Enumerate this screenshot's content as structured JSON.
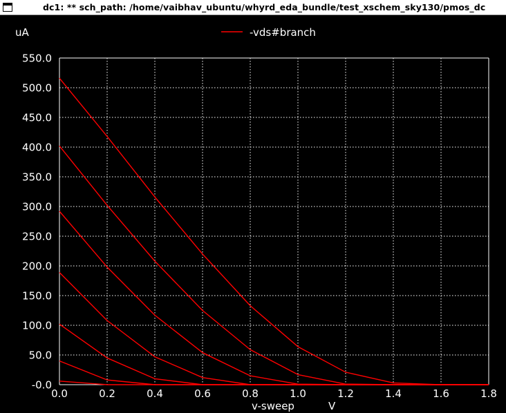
{
  "window": {
    "title": "dc1: ** sch_path: /home/vaibhav_ubuntu/whyrd_eda_bundle/test_xschem_sky130/pmos_dc",
    "menu_icon": "window-menu-icon"
  },
  "colors": {
    "background": "#000000",
    "grid": "#ffffff",
    "axis_text": "#ffffff",
    "trace": "#ff0000",
    "titlebar_bg": "#ffffff"
  },
  "chart_data": {
    "type": "line",
    "title": "",
    "xlabel": "v-sweep",
    "xunit": "V",
    "ylabel": "uA",
    "xlim": [
      0.0,
      1.8
    ],
    "ylim": [
      0.0,
      550.0
    ],
    "x_ticks": [
      "0.0",
      "0.2",
      "0.4",
      "0.6",
      "0.8",
      "1.0",
      "1.2",
      "1.4",
      "1.6",
      "1.8"
    ],
    "y_ticks": [
      "-0.0",
      "50.0",
      "100.0",
      "150.0",
      "200.0",
      "250.0",
      "300.0",
      "350.0",
      "400.0",
      "450.0",
      "500.0",
      "550.0"
    ],
    "grid": true,
    "grid_style": "dotted",
    "legend_position": "top-center",
    "legend": [
      "-vds#branch"
    ],
    "series": [
      {
        "name": "-vds#branch",
        "x": [
          0.0,
          0.2,
          0.4,
          0.6,
          0.8,
          1.0,
          1.2,
          1.4,
          1.6,
          1.8
        ],
        "values": [
          516,
          418,
          316,
          220,
          133,
          64,
          21,
          3,
          0,
          0
        ]
      },
      {
        "name": "-vds#branch",
        "x": [
          0.0,
          0.2,
          0.4,
          0.6,
          0.8,
          1.0,
          1.2,
          1.4,
          1.6,
          1.8
        ],
        "values": [
          402,
          302,
          208,
          125,
          59,
          17,
          1,
          0,
          0,
          0
        ]
      },
      {
        "name": "-vds#branch",
        "x": [
          0.0,
          0.2,
          0.4,
          0.6,
          0.8,
          1.0,
          1.2,
          1.4,
          1.6,
          1.8
        ],
        "values": [
          292,
          198,
          117,
          54,
          15,
          1,
          0,
          0,
          0,
          0
        ]
      },
      {
        "name": "-vds#branch",
        "x": [
          0.0,
          0.2,
          0.4,
          0.6,
          0.8,
          1.0,
          1.2,
          1.4,
          1.6,
          1.8
        ],
        "values": [
          189,
          108,
          47,
          12,
          0,
          0,
          0,
          0,
          0,
          0
        ]
      },
      {
        "name": "-vds#branch",
        "x": [
          0.0,
          0.2,
          0.4,
          0.6,
          0.8,
          1.0,
          1.2,
          1.4,
          1.6,
          1.8
        ],
        "values": [
          102,
          45,
          10,
          0,
          0,
          0,
          0,
          0,
          0,
          0
        ]
      },
      {
        "name": "-vds#branch",
        "x": [
          0.0,
          0.2,
          0.4,
          0.6,
          0.8,
          1.0,
          1.2,
          1.4,
          1.6,
          1.8
        ],
        "values": [
          40,
          8,
          0,
          0,
          0,
          0,
          0,
          0,
          0,
          0
        ]
      },
      {
        "name": "-vds#branch",
        "x": [
          0.0,
          0.2,
          0.4,
          0.6,
          0.8,
          1.0,
          1.2,
          1.4,
          1.6,
          1.8
        ],
        "values": [
          6,
          0,
          0,
          0,
          0,
          0,
          0,
          0,
          0,
          0
        ]
      }
    ]
  }
}
